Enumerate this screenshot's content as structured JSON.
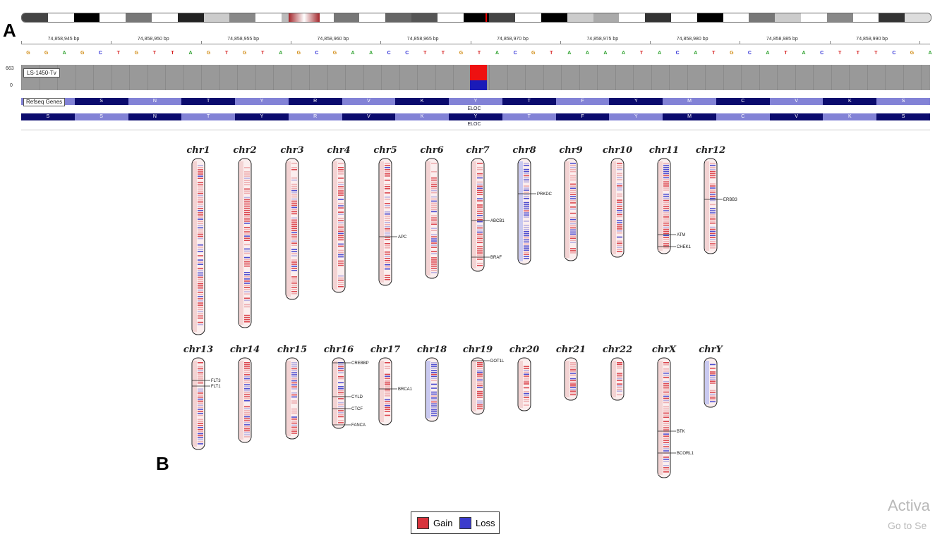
{
  "panel_labels": {
    "a": "A",
    "b": "B"
  },
  "colors": {
    "gain": "#d8333c",
    "loss": "#3b3bcc",
    "coverage": "#999999",
    "aa_dark": "#0b0b6e",
    "aa_light": "#8282d6"
  },
  "igv": {
    "positions": [
      "74,858,945 bp",
      "74,858,950 bp",
      "74,858,955 bp",
      "74,858,960 bp",
      "74,858,965 bp",
      "74,858,970 bp",
      "74,858,975 bp",
      "74,858,980 bp",
      "74,858,985 bp",
      "74,858,990 bp"
    ],
    "sequence": [
      "G",
      "G",
      "A",
      "G",
      "C",
      "T",
      "G",
      "T",
      "T",
      "A",
      "G",
      "T",
      "G",
      "T",
      "A",
      "G",
      "C",
      "G",
      "A",
      "A",
      "C",
      "C",
      "T",
      "T",
      "G",
      "T",
      "A",
      "C",
      "G",
      "T",
      "A",
      "A",
      "A",
      "A",
      "T",
      "A",
      "C",
      "A",
      "T",
      "G",
      "C",
      "A",
      "T",
      "A",
      "C",
      "T",
      "T",
      "T",
      "C",
      "G",
      "A"
    ],
    "coverage_scale": {
      "max": "663",
      "min": "0"
    },
    "sample": "LS-1450-Tv",
    "variant_fraction": {
      "gain": 0.6,
      "loss": 0.4
    },
    "refseq_label": "Refseq Genes",
    "gene_name": "ELOC",
    "aa_row1": [
      "S",
      "N",
      "T",
      "Y",
      "R",
      "V",
      "K",
      "Y",
      "T",
      "F",
      "Y",
      "M",
      "C",
      "V",
      "K",
      "S"
    ],
    "aa_row2": [
      "S",
      "S",
      "N",
      "T",
      "Y",
      "R",
      "V",
      "K",
      "Y",
      "T",
      "F",
      "Y",
      "M",
      "C",
      "V",
      "K",
      "S"
    ]
  },
  "chromosomes": [
    {
      "name": "chr1",
      "genes": []
    },
    {
      "name": "chr2",
      "genes": []
    },
    {
      "name": "chr3",
      "genes": []
    },
    {
      "name": "chr4",
      "genes": []
    },
    {
      "name": "chr5",
      "genes": [
        "APC"
      ]
    },
    {
      "name": "chr6",
      "genes": []
    },
    {
      "name": "chr7",
      "genes": [
        "ABCB1",
        "BRAF"
      ]
    },
    {
      "name": "chr8",
      "genes": [
        "PRKDC"
      ]
    },
    {
      "name": "chr9",
      "genes": []
    },
    {
      "name": "chr10",
      "genes": []
    },
    {
      "name": "chr11",
      "genes": [
        "ATM",
        "CHEK1"
      ]
    },
    {
      "name": "chr12",
      "genes": [
        "ERBB3"
      ]
    },
    {
      "name": "chr13",
      "genes": [
        "FLT3",
        "FLT1"
      ]
    },
    {
      "name": "chr14",
      "genes": []
    },
    {
      "name": "chr15",
      "genes": []
    },
    {
      "name": "chr16",
      "genes": [
        "CREBBP",
        "CYLD",
        "CTCF",
        "FANCA"
      ]
    },
    {
      "name": "chr17",
      "genes": [
        "BRCA1"
      ]
    },
    {
      "name": "chr18",
      "genes": []
    },
    {
      "name": "chr19",
      "genes": [
        "DOT1L"
      ]
    },
    {
      "name": "chr20",
      "genes": []
    },
    {
      "name": "chr21",
      "genes": []
    },
    {
      "name": "chr22",
      "genes": []
    },
    {
      "name": "chrX",
      "genes": [
        "BTK",
        "BCORL1"
      ]
    },
    {
      "name": "chrY",
      "genes": []
    }
  ],
  "legend": {
    "gain": "Gain",
    "loss": "Loss"
  },
  "watermark": {
    "line1": "Activa",
    "line2": "Go to Se"
  }
}
